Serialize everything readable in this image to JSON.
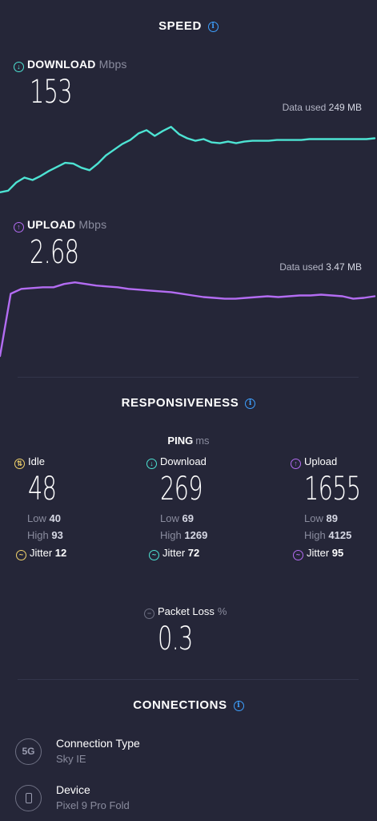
{
  "speed": {
    "title": "SPEED",
    "download": {
      "label": "DOWNLOAD",
      "unit": "Mbps",
      "value": "153",
      "data_used_label": "Data used",
      "data_used_value": "249 MB",
      "color": "#4de3d3",
      "graph": [
        0.92,
        0.9,
        0.8,
        0.74,
        0.77,
        0.72,
        0.66,
        0.61,
        0.56,
        0.57,
        0.62,
        0.65,
        0.57,
        0.47,
        0.4,
        0.33,
        0.28,
        0.2,
        0.16,
        0.23,
        0.17,
        0.12,
        0.21,
        0.26,
        0.29,
        0.27,
        0.31,
        0.32,
        0.3,
        0.32,
        0.3,
        0.29,
        0.29,
        0.29,
        0.28,
        0.28,
        0.28,
        0.28,
        0.27,
        0.27,
        0.27,
        0.27,
        0.27,
        0.27,
        0.27,
        0.27,
        0.26
      ]
    },
    "upload": {
      "label": "UPLOAD",
      "unit": "Mbps",
      "value": "2.68",
      "data_used_label": "Data used",
      "data_used_value": "3.47 MB",
      "color": "#b36cf2",
      "graph": [
        0.98,
        0.22,
        0.16,
        0.15,
        0.14,
        0.14,
        0.1,
        0.08,
        0.1,
        0.12,
        0.13,
        0.14,
        0.16,
        0.17,
        0.18,
        0.19,
        0.2,
        0.22,
        0.24,
        0.26,
        0.27,
        0.28,
        0.28,
        0.27,
        0.26,
        0.25,
        0.26,
        0.25,
        0.24,
        0.24,
        0.23,
        0.24,
        0.25,
        0.28,
        0.27,
        0.25
      ]
    }
  },
  "responsiveness": {
    "title": "RESPONSIVENESS",
    "ping_label": "PING",
    "ping_unit": "ms",
    "low_label": "Low",
    "high_label": "High",
    "jitter_label": "Jitter",
    "columns": [
      {
        "label": "Idle",
        "value": "48",
        "low": "40",
        "high": "93",
        "jitter": "12",
        "color": "#f2d36b",
        "icon": "idle-icon"
      },
      {
        "label": "Download",
        "value": "269",
        "low": "69",
        "high": "1269",
        "jitter": "72",
        "color": "#4de3d3",
        "icon": "download-icon"
      },
      {
        "label": "Upload",
        "value": "1655",
        "low": "89",
        "high": "4125",
        "jitter": "95",
        "color": "#b36cf2",
        "icon": "upload-icon"
      }
    ],
    "packet_loss": {
      "label": "Packet Loss",
      "unit": "%",
      "value": "0.3"
    }
  },
  "connections": {
    "title": "CONNECTIONS",
    "items": [
      {
        "title": "Connection Type",
        "value": "Sky IE",
        "icon_text": "5G",
        "icon": "5g-icon"
      },
      {
        "title": "Device",
        "value": "Pixel 9 Pro Fold",
        "icon": "phone-icon"
      }
    ]
  }
}
